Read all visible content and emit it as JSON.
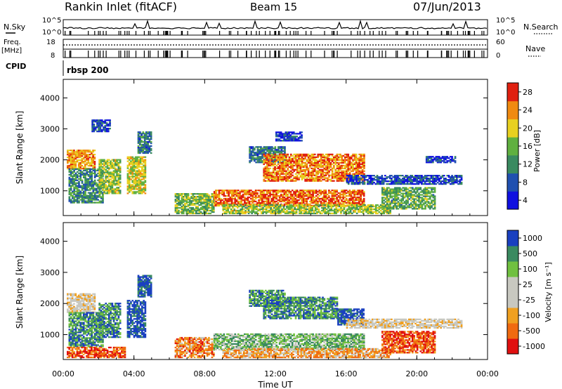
{
  "header": {
    "station": "Rankin Inlet (fitACF)",
    "beam": "Beam 15",
    "date": "07/Jun/2013"
  },
  "noise_panel": {
    "left_label": "N.Sky",
    "right_label": "N.Search",
    "left_ticks": [
      "10^5",
      "10^0"
    ],
    "right_ticks": [
      "10^5",
      "10^0"
    ]
  },
  "freq_panel": {
    "left_label_line1": "Freq.",
    "left_label_line2": "[MHz]",
    "right_label": "Nave",
    "left_ticks": [
      "18",
      "8"
    ],
    "right_ticks": [
      "60",
      "0"
    ]
  },
  "cpid_panel": {
    "label": "CPID",
    "program": "rbsp 200"
  },
  "chart_data": [
    {
      "type": "heatmap",
      "name": "power",
      "ylabel": "Slant Range [km]",
      "yticks": [
        1000,
        2000,
        3000,
        4000
      ],
      "ylim": [
        200,
        4600
      ],
      "xlim_hours": [
        0,
        24
      ],
      "colorbar_label": "Power [dB]",
      "colorbar_ticks": [
        "4",
        "8",
        "12",
        "16",
        "20",
        "24",
        "28"
      ],
      "colors": [
        "#1010e0",
        "#2050b0",
        "#3a8a60",
        "#60b040",
        "#e8d020",
        "#f08a10",
        "#e02010"
      ],
      "regions": [
        {
          "t0": 0.2,
          "t1": 1.8,
          "r0": 1700,
          "r1": 2300,
          "v": 0.75
        },
        {
          "t0": 0.3,
          "t1": 2.2,
          "r0": 600,
          "r1": 1700,
          "v": 0.35
        },
        {
          "t0": 2.0,
          "t1": 3.2,
          "r0": 900,
          "r1": 2000,
          "v": 0.55
        },
        {
          "t0": 3.6,
          "t1": 4.6,
          "r0": 900,
          "r1": 2100,
          "v": 0.6
        },
        {
          "t0": 4.2,
          "t1": 5.0,
          "r0": 2200,
          "r1": 2900,
          "v": 0.3
        },
        {
          "t0": 1.6,
          "t1": 2.6,
          "r0": 2900,
          "r1": 3300,
          "v": 0.2
        },
        {
          "t0": 6.3,
          "t1": 8.5,
          "r0": 250,
          "r1": 900,
          "v": 0.5
        },
        {
          "t0": 8.5,
          "t1": 17.0,
          "r0": 500,
          "r1": 1000,
          "v": 0.85
        },
        {
          "t0": 9.0,
          "t1": 18.5,
          "r0": 250,
          "r1": 550,
          "v": 0.55
        },
        {
          "t0": 10.5,
          "t1": 12.5,
          "r0": 1900,
          "r1": 2400,
          "v": 0.3
        },
        {
          "t0": 11.3,
          "t1": 17.0,
          "r0": 1300,
          "r1": 2200,
          "v": 0.8
        },
        {
          "t0": 16.0,
          "t1": 22.5,
          "r0": 1200,
          "r1": 1500,
          "v": 0.2
        },
        {
          "t0": 18.0,
          "t1": 21.0,
          "r0": 400,
          "r1": 1100,
          "v": 0.45
        },
        {
          "t0": 20.5,
          "t1": 22.2,
          "r0": 1900,
          "r1": 2100,
          "v": 0.15
        },
        {
          "t0": 12.0,
          "t1": 13.5,
          "r0": 2600,
          "r1": 2900,
          "v": 0.15
        }
      ]
    },
    {
      "type": "heatmap",
      "name": "velocity",
      "ylabel": "Slant Range [km]",
      "yticks": [
        1000,
        2000,
        3000,
        4000
      ],
      "ylim": [
        200,
        4600
      ],
      "xlim_hours": [
        0,
        24
      ],
      "xticks": [
        "00:00",
        "04:00",
        "08:00",
        "12:00",
        "16:00",
        "20:00",
        "00:00"
      ],
      "xlabel": "Time UT",
      "colorbar_label": "Velocity [m s⁻¹]",
      "colorbar_ticks": [
        "-1000",
        "-500",
        "-100",
        "-25",
        "25",
        "100",
        "500",
        "1000"
      ],
      "colors": [
        "#e01010",
        "#f06a10",
        "#f0a020",
        "#c8c8c0",
        "#c8c8c0",
        "#70c040",
        "#3a8a60",
        "#1a40c0"
      ],
      "regions": [
        {
          "t0": 0.2,
          "t1": 1.8,
          "r0": 1700,
          "r1": 2300,
          "v": 0.45
        },
        {
          "t0": 0.3,
          "t1": 2.2,
          "r0": 600,
          "r1": 1700,
          "v": 0.8
        },
        {
          "t0": 2.0,
          "t1": 3.2,
          "r0": 900,
          "r1": 2000,
          "v": 0.8
        },
        {
          "t0": 3.6,
          "t1": 4.6,
          "r0": 900,
          "r1": 2100,
          "v": 0.95
        },
        {
          "t0": 4.2,
          "t1": 5.0,
          "r0": 2200,
          "r1": 2900,
          "v": 0.95
        },
        {
          "t0": 0.2,
          "t1": 3.5,
          "r0": 250,
          "r1": 600,
          "v": 0.15
        },
        {
          "t0": 6.3,
          "t1": 8.5,
          "r0": 250,
          "r1": 900,
          "v": 0.25
        },
        {
          "t0": 8.5,
          "t1": 17.0,
          "r0": 500,
          "r1": 1000,
          "v": 0.7
        },
        {
          "t0": 9.0,
          "t1": 18.5,
          "r0": 250,
          "r1": 550,
          "v": 0.3
        },
        {
          "t0": 11.3,
          "t1": 15.5,
          "r0": 1500,
          "r1": 2200,
          "v": 0.8
        },
        {
          "t0": 15.5,
          "t1": 17.0,
          "r0": 1300,
          "r1": 1800,
          "v": 0.95
        },
        {
          "t0": 16.0,
          "t1": 22.5,
          "r0": 1200,
          "r1": 1500,
          "v": 0.45
        },
        {
          "t0": 18.0,
          "t1": 21.0,
          "r0": 400,
          "r1": 1100,
          "v": 0.15
        },
        {
          "t0": 10.5,
          "t1": 12.5,
          "r0": 1900,
          "r1": 2400,
          "v": 0.8
        }
      ]
    }
  ]
}
